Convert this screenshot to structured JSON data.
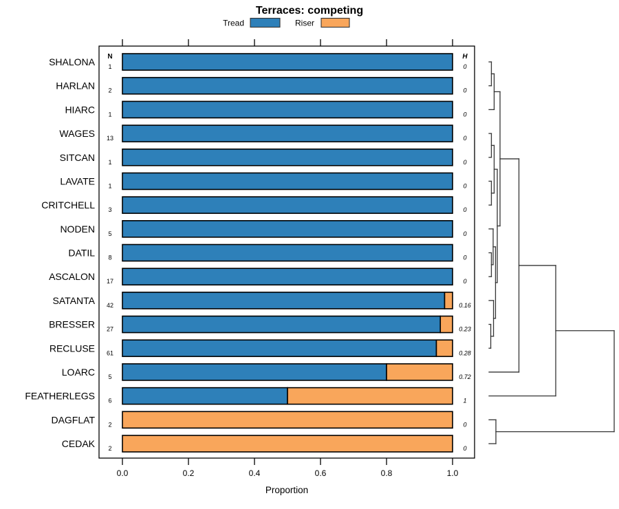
{
  "title": "Terraces: competing",
  "legend": {
    "items": [
      {
        "label": "Tread",
        "color": "#2E80B9"
      },
      {
        "label": "Riser",
        "color": "#F9A65B"
      }
    ]
  },
  "columns": {
    "n_header": "N",
    "h_header": "H"
  },
  "x_axis": {
    "label": "Proportion",
    "tick_labels": [
      "0.0",
      "0.2",
      "0.4",
      "0.6",
      "0.8",
      "1.0"
    ],
    "tick_values": [
      0,
      0.2,
      0.4,
      0.6,
      0.8,
      1.0
    ]
  },
  "chart_data": {
    "type": "bar",
    "orientation": "horizontal",
    "stacked": true,
    "title": "Terraces: competing",
    "xlabel": "Proportion",
    "xlim": [
      0,
      1
    ],
    "legend_position": "top",
    "grid": false,
    "categories": [
      "SHALONA",
      "HARLAN",
      "HIARC",
      "WAGES",
      "SITCAN",
      "LAVATE",
      "CRITCHELL",
      "NODEN",
      "DATIL",
      "ASCALON",
      "SATANTA",
      "BRESSER",
      "RECLUSE",
      "LOARC",
      "FEATHERLEGS",
      "DAGFLAT",
      "CEDAK"
    ],
    "n_values": [
      1,
      2,
      1,
      13,
      1,
      1,
      3,
      5,
      8,
      17,
      42,
      27,
      61,
      5,
      6,
      2,
      2
    ],
    "h_values": [
      "0",
      "0",
      "0",
      "0",
      "0",
      "0",
      "0",
      "0",
      "0",
      "0",
      "0.16",
      "0.23",
      "0.28",
      "0.72",
      "1",
      "0",
      "0"
    ],
    "series": [
      {
        "name": "Tread",
        "color": "#2E80B9",
        "values": [
          1,
          1,
          1,
          1,
          1,
          1,
          1,
          1,
          1,
          1,
          0.976,
          0.963,
          0.951,
          0.8,
          0.5,
          0,
          0
        ]
      },
      {
        "name": "Riser",
        "color": "#F9A65B",
        "values": [
          0,
          0,
          0,
          0,
          0,
          0,
          0,
          0,
          0,
          0,
          0.024,
          0.037,
          0.049,
          0.2,
          0.5,
          1,
          1
        ]
      }
    ],
    "dendrogram": {
      "position": "right",
      "merges": [
        {
          "id": "n1",
          "children": [
            "SHALONA",
            "HARLAN"
          ],
          "height": 0.019
        },
        {
          "id": "n2",
          "children": [
            "n1",
            "HIARC"
          ],
          "height": 0.041
        },
        {
          "id": "n3",
          "children": [
            "WAGES",
            "SITCAN"
          ],
          "height": 0.019
        },
        {
          "id": "n4",
          "children": [
            "LAVATE",
            "CRITCHELL"
          ],
          "height": 0.019
        },
        {
          "id": "n5",
          "children": [
            "n3",
            "n4"
          ],
          "height": 0.041
        },
        {
          "id": "n6",
          "children": [
            "DATIL",
            "ASCALON"
          ],
          "height": 0.019
        },
        {
          "id": "n7",
          "children": [
            "NODEN",
            "n6"
          ],
          "height": 0.033
        },
        {
          "id": "n8",
          "children": [
            "BRESSER",
            "RECLUSE"
          ],
          "height": 0.014
        },
        {
          "id": "n9",
          "children": [
            "SATANTA",
            "n8"
          ],
          "height": 0.036
        },
        {
          "id": "n10",
          "children": [
            "n7",
            "n9"
          ],
          "height": 0.052
        },
        {
          "id": "n11",
          "children": [
            "n5",
            "n10"
          ],
          "height": 0.066
        },
        {
          "id": "n12",
          "children": [
            "n2",
            "n11"
          ],
          "height": 0.088
        },
        {
          "id": "n13",
          "children": [
            "n12",
            "LOARC"
          ],
          "height": 0.239
        },
        {
          "id": "n14",
          "children": [
            "n13",
            "FEATHERLEGS"
          ],
          "height": 0.533
        },
        {
          "id": "n15",
          "children": [
            "DAGFLAT",
            "CEDAK"
          ],
          "height": 0.055
        },
        {
          "id": "n16",
          "children": [
            "n14",
            "n15"
          ],
          "height": 1.0
        }
      ]
    }
  }
}
